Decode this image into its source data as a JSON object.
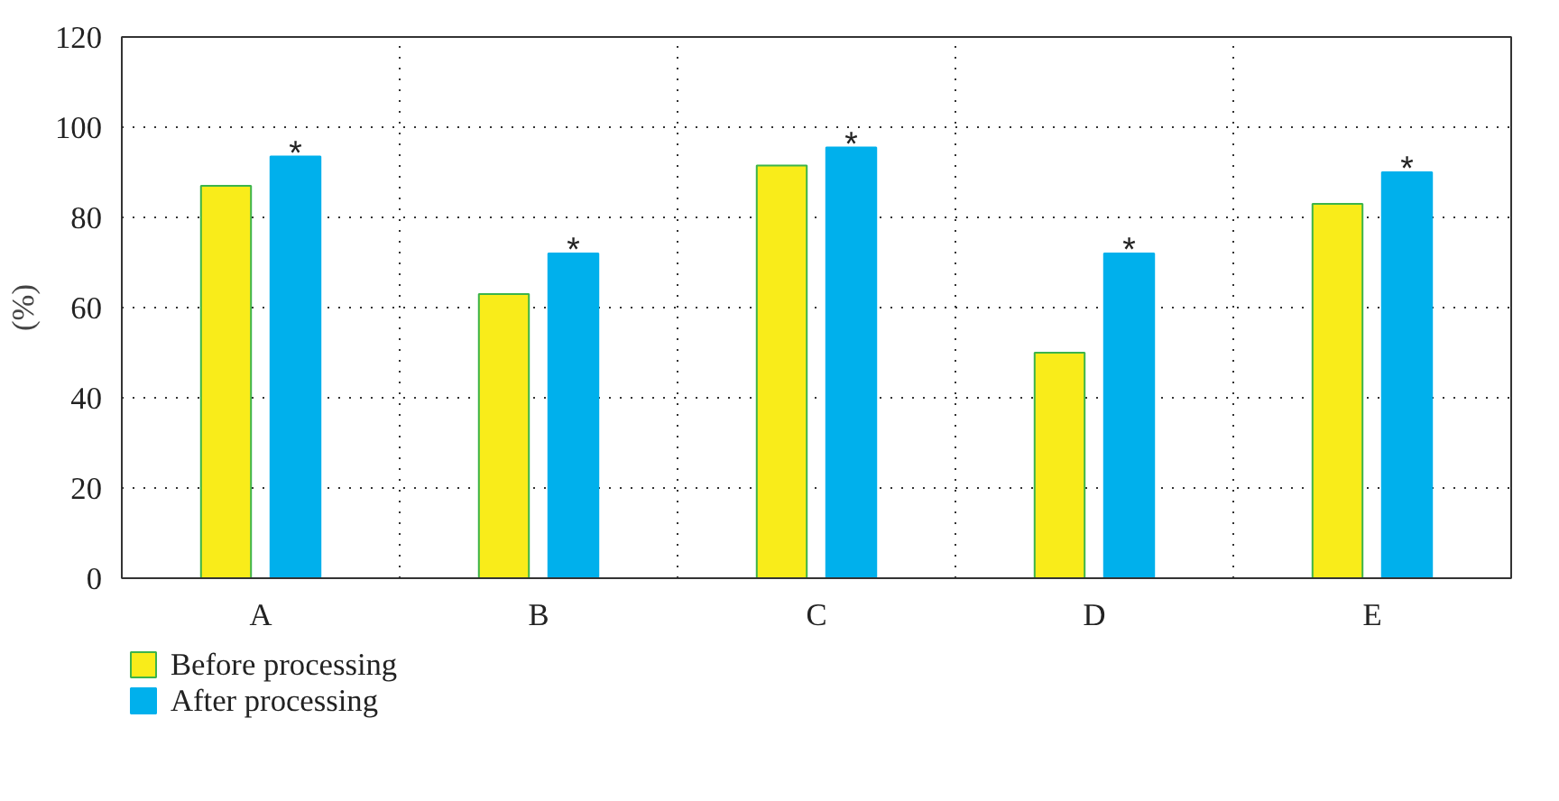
{
  "chart_data": {
    "type": "bar",
    "ylabel": "(%)",
    "categories": [
      "A",
      "B",
      "C",
      "D",
      "E"
    ],
    "series": [
      {
        "name": "Before processing",
        "color": "#f9ec1a",
        "values": [
          87,
          63,
          91.5,
          50,
          83
        ]
      },
      {
        "name": "After processing",
        "color": "#00b0ec",
        "values": [
          93.5,
          72,
          95.5,
          72,
          90
        ]
      }
    ],
    "ylim": [
      0,
      120
    ],
    "yticks": [
      0,
      20,
      40,
      60,
      80,
      100,
      120
    ],
    "grid": true,
    "legend": "bottom left",
    "annotations": [
      "*",
      "*",
      "*",
      "*",
      "*"
    ]
  }
}
